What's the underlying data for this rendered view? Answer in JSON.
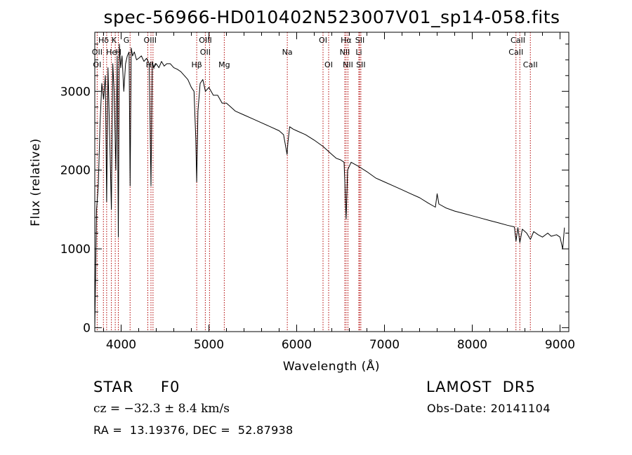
{
  "title": "spec-56966-HD010402N523007V01_sp14-058.fits",
  "footer": {
    "object_class": "STAR     F0",
    "release": "LAMOST  DR5",
    "velocity": "cz = −32.3 ± 8.4 km/s",
    "obs_date": "Obs-Date: 20141104",
    "coordinates": "RA =  13.19376, DEC =  52.87938"
  },
  "colors": {
    "spectrum": "#000000",
    "line_marker": "#b00000",
    "axis": "#000000"
  },
  "chart_data": {
    "type": "line",
    "title": "spec-56966-HD010402N523007V01_sp14-058.fits",
    "xlabel": "Wavelength (Å)",
    "ylabel": "Flux (relative)",
    "xlim": [
      3700,
      9100
    ],
    "ylim": [
      -50,
      3750
    ],
    "xticks": [
      4000,
      5000,
      6000,
      7000,
      8000,
      9000
    ],
    "yticks": [
      0,
      1000,
      2000,
      3000
    ],
    "grid": false,
    "series": [
      {
        "x": [
          3700,
          3720,
          3740,
          3760,
          3780,
          3800,
          3820,
          3835,
          3850,
          3870,
          3889,
          3905,
          3920,
          3940,
          3955,
          3968,
          3980,
          3995,
          4010,
          4030,
          4050,
          4070,
          4090,
          4102,
          4115,
          4130,
          4150,
          4175,
          4200,
          4230,
          4260,
          4290,
          4320,
          4340,
          4355,
          4370,
          4400,
          4430,
          4460,
          4490,
          4520,
          4560,
          4600,
          4640,
          4680,
          4720,
          4760,
          4800,
          4830,
          4850,
          4861,
          4875,
          4900,
          4930,
          4960,
          5000,
          5050,
          5100,
          5150,
          5200,
          5250,
          5300,
          5400,
          5500,
          5600,
          5700,
          5800,
          5850,
          5890,
          5900,
          5920,
          5960,
          6000,
          6100,
          6200,
          6300,
          6400,
          6450,
          6500,
          6540,
          6563,
          6580,
          6620,
          6700,
          6800,
          6900,
          7000,
          7100,
          7200,
          7300,
          7400,
          7500,
          7580,
          7600,
          7620,
          7700,
          7800,
          7900,
          8000,
          8100,
          8200,
          8300,
          8400,
          8480,
          8498,
          8520,
          8542,
          8570,
          8620,
          8662,
          8700,
          8750,
          8800,
          8860,
          8900,
          8960,
          9000,
          9030,
          9050
        ],
        "values": [
          0,
          1500,
          1800,
          2600,
          3100,
          2900,
          3200,
          1600,
          3300,
          2400,
          1500,
          3350,
          3000,
          2000,
          3450,
          1150,
          3600,
          3300,
          3450,
          3000,
          3350,
          3450,
          3500,
          1800,
          3550,
          3450,
          3500,
          3400,
          3420,
          3450,
          3380,
          3420,
          3350,
          1800,
          3380,
          3300,
          3350,
          3300,
          3380,
          3320,
          3350,
          3350,
          3300,
          3280,
          3250,
          3200,
          3150,
          3050,
          3000,
          2400,
          1850,
          2750,
          3100,
          3150,
          3000,
          3050,
          2950,
          2950,
          2850,
          2850,
          2800,
          2750,
          2700,
          2650,
          2600,
          2550,
          2500,
          2450,
          2200,
          2350,
          2550,
          2520,
          2500,
          2450,
          2380,
          2300,
          2200,
          2150,
          2130,
          2100,
          1380,
          2000,
          2100,
          2050,
          1980,
          1900,
          1850,
          1800,
          1750,
          1700,
          1650,
          1580,
          1530,
          1700,
          1570,
          1520,
          1480,
          1450,
          1420,
          1390,
          1360,
          1330,
          1300,
          1280,
          1100,
          1270,
          1080,
          1250,
          1200,
          1120,
          1220,
          1180,
          1150,
          1200,
          1160,
          1180,
          1150,
          1000,
          1270
        ]
      }
    ],
    "line_labels": [
      {
        "name": "Hδ",
        "x": 3800,
        "row": 1
      },
      {
        "name": "K",
        "x": 3920,
        "row": 1
      },
      {
        "name": "G",
        "x": 4060,
        "row": 1
      },
      {
        "name": "OIII",
        "x": 4330,
        "row": 1
      },
      {
        "name": "OIII",
        "x": 4960,
        "row": 1
      },
      {
        "name": "OI",
        "x": 6300,
        "row": 1
      },
      {
        "name": "Hα",
        "x": 6563,
        "row": 1
      },
      {
        "name": "SII",
        "x": 6720,
        "row": 1
      },
      {
        "name": "CaII",
        "x": 8520,
        "row": 1
      },
      {
        "name": "OII",
        "x": 3727,
        "row": 2
      },
      {
        "name": "He",
        "x": 3889,
        "row": 2
      },
      {
        "name": "H",
        "x": 3970,
        "row": 2
      },
      {
        "name": "OII",
        "x": 4959,
        "row": 2
      },
      {
        "name": "Na",
        "x": 5893,
        "row": 2
      },
      {
        "name": "NII",
        "x": 6548,
        "row": 2
      },
      {
        "name": "Li",
        "x": 6708,
        "row": 2
      },
      {
        "name": "CaII",
        "x": 8498,
        "row": 2
      },
      {
        "name": "OI",
        "x": 3727,
        "row": 3
      },
      {
        "name": "Hγ",
        "x": 4340,
        "row": 3
      },
      {
        "name": "Hβ",
        "x": 4861,
        "row": 3
      },
      {
        "name": "Mg",
        "x": 5175,
        "row": 3
      },
      {
        "name": "OI",
        "x": 6364,
        "row": 3
      },
      {
        "name": "NII",
        "x": 6584,
        "row": 3
      },
      {
        "name": "SII",
        "x": 6731,
        "row": 3
      },
      {
        "name": "CaII",
        "x": 8662,
        "row": 3
      }
    ],
    "line_markers": [
      3727,
      3798,
      3835,
      3889,
      3933,
      3968,
      4102,
      4304,
      4340,
      4363,
      4861,
      4959,
      5007,
      5175,
      5893,
      6300,
      6364,
      6548,
      6563,
      6584,
      6708,
      6717,
      6731,
      8498,
      8542,
      8662
    ]
  }
}
